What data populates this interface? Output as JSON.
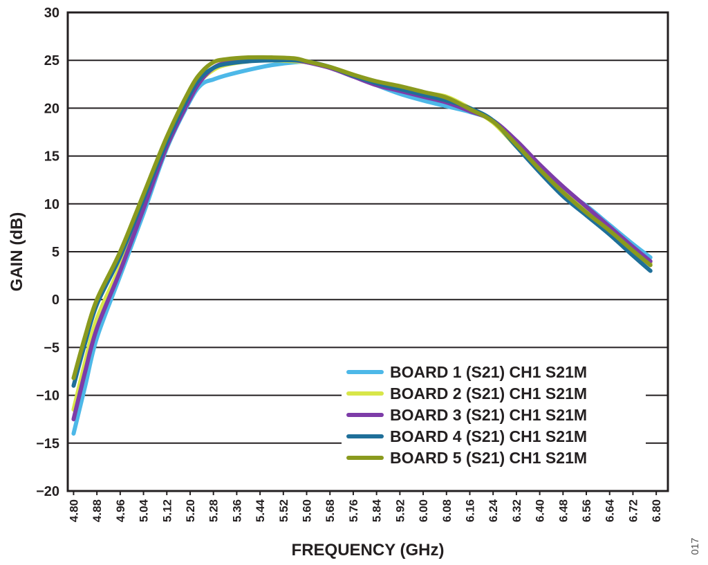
{
  "chart_data": {
    "type": "line",
    "title": "",
    "xlabel": "FREQUENCY (GHz)",
    "ylabel": "GAIN (dB)",
    "xlim": [
      4.78,
      6.84
    ],
    "ylim": [
      -20,
      30
    ],
    "grid": "horizontal",
    "legend_position": "bottom-right",
    "x_ticks": [
      "4.80",
      "4.88",
      "4.96",
      "5.04",
      "5.12",
      "5.20",
      "5.28",
      "5.36",
      "5.44",
      "5.52",
      "5.60",
      "5.68",
      "5.76",
      "5.84",
      "5.92",
      "6.00",
      "6.08",
      "6.16",
      "6.24",
      "6.32",
      "6.40",
      "6.48",
      "6.56",
      "6.64",
      "6.72",
      "6.80"
    ],
    "y_ticks": [
      "30",
      "25",
      "20",
      "15",
      "10",
      "5",
      "0",
      "−5",
      "−10",
      "−15",
      "−20"
    ],
    "series": [
      {
        "name": "BOARD 1 (S21) CH1 S21M",
        "color": "#4db8e8",
        "x": [
          4.8,
          4.84,
          4.88,
          4.96,
          5.04,
          5.12,
          5.2,
          5.24,
          5.28,
          5.32,
          5.4,
          5.48,
          5.56,
          5.6,
          5.68,
          5.76,
          5.84,
          5.92,
          6.0,
          6.08,
          6.16,
          6.24,
          6.32,
          6.4,
          6.48,
          6.56,
          6.64,
          6.72,
          6.78
        ],
        "y": [
          -14,
          -9,
          -4,
          2.5,
          9,
          15.8,
          20.8,
          22.5,
          23,
          23.4,
          24,
          24.5,
          24.8,
          24.8,
          24.3,
          23.4,
          22.4,
          21.5,
          20.8,
          20.2,
          19.6,
          18.7,
          16.3,
          13.8,
          11.5,
          9.8,
          7.8,
          5.8,
          4.4
        ]
      },
      {
        "name": "BOARD 2 (S21) CH1 S21M",
        "color": "#d8e649",
        "x": [
          4.8,
          4.84,
          4.88,
          4.96,
          5.04,
          5.12,
          5.2,
          5.24,
          5.28,
          5.32,
          5.4,
          5.48,
          5.56,
          5.6,
          5.68,
          5.76,
          5.84,
          5.92,
          6.0,
          6.08,
          6.16,
          6.24,
          6.32,
          6.4,
          6.48,
          6.56,
          6.64,
          6.72,
          6.78
        ],
        "y": [
          -11.5,
          -6.5,
          -2,
          3.5,
          9.8,
          16,
          21.2,
          23,
          24,
          24.5,
          24.9,
          25,
          24.9,
          24.8,
          24.3,
          23.5,
          22.7,
          22.1,
          21.6,
          21.2,
          20,
          18.5,
          16,
          13.5,
          11.3,
          9.3,
          7.3,
          5.3,
          3.8
        ]
      },
      {
        "name": "BOARD 3 (S21) CH1 S21M",
        "color": "#7d3ca8",
        "x": [
          4.8,
          4.84,
          4.88,
          4.96,
          5.04,
          5.12,
          5.2,
          5.24,
          5.28,
          5.32,
          5.4,
          5.48,
          5.56,
          5.6,
          5.68,
          5.76,
          5.84,
          5.92,
          6.0,
          6.08,
          6.16,
          6.24,
          6.32,
          6.4,
          6.48,
          6.56,
          6.64,
          6.72,
          6.78
        ],
        "y": [
          -12.5,
          -7.5,
          -3,
          3,
          9.5,
          16,
          21,
          23,
          24.2,
          24.7,
          25,
          25.1,
          25,
          24.8,
          24.2,
          23.3,
          22.4,
          21.8,
          21.2,
          20.6,
          19.7,
          18.7,
          16.6,
          14.1,
          11.8,
          9.7,
          7.6,
          5.5,
          4
        ]
      },
      {
        "name": "BOARD 4 (S21) CH1 S21M",
        "color": "#1f6f99",
        "x": [
          4.8,
          4.84,
          4.88,
          4.96,
          5.04,
          5.12,
          5.2,
          5.24,
          5.28,
          5.32,
          5.4,
          5.48,
          5.56,
          5.6,
          5.68,
          5.76,
          5.84,
          5.92,
          6.0,
          6.08,
          6.16,
          6.24,
          6.32,
          6.4,
          6.48,
          6.56,
          6.64,
          6.72,
          6.78
        ],
        "y": [
          -9,
          -4.5,
          -0.5,
          4.5,
          10.5,
          16.5,
          21.5,
          23.3,
          24.2,
          24.6,
          24.9,
          25,
          25,
          24.9,
          24.3,
          23.4,
          22.6,
          22,
          21.4,
          20.8,
          20,
          18.7,
          16,
          13.3,
          10.8,
          8.8,
          6.8,
          4.6,
          3
        ]
      },
      {
        "name": "BOARD 5 (S21) CH1 S21M",
        "color": "#8a9a1e",
        "x": [
          4.8,
          4.84,
          4.88,
          4.96,
          5.04,
          5.12,
          5.2,
          5.24,
          5.28,
          5.32,
          5.4,
          5.48,
          5.56,
          5.6,
          5.68,
          5.76,
          5.84,
          5.92,
          6.0,
          6.08,
          6.16,
          6.24,
          6.32,
          6.4,
          6.48,
          6.56,
          6.64,
          6.72,
          6.78
        ],
        "y": [
          -8.2,
          -3.8,
          0,
          5,
          11,
          17,
          22,
          23.8,
          24.8,
          25.1,
          25.3,
          25.3,
          25.2,
          24.9,
          24.3,
          23.5,
          22.8,
          22.3,
          21.7,
          21.1,
          19.9,
          18.6,
          16.2,
          13.6,
          11.2,
          9.1,
          7.2,
          5.1,
          3.6
        ]
      }
    ]
  },
  "figure_id": "017"
}
